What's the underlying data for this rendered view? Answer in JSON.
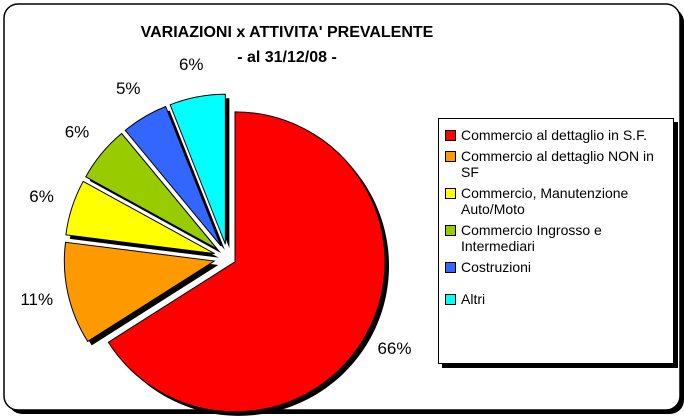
{
  "chart_data": {
    "type": "pie",
    "title": "VARIAZIONI x ATTIVITA' PREVALENTE",
    "subtitle": "- al 31/12/08 -",
    "categories": [
      "Commercio al dettaglio in S.F.",
      "Commercio al dettaglio NON in SF",
      "Commercio, Manutenzione Auto/Moto",
      "Commercio Ingrosso e Intermediari",
      "Costruzioni",
      "Altri"
    ],
    "values": [
      66,
      11,
      6,
      6,
      5,
      6
    ],
    "value_labels": [
      "66%",
      "11%",
      "6%",
      "6%",
      "5%",
      "6%"
    ],
    "colors": [
      "#ff0000",
      "#ff9900",
      "#ffff00",
      "#99cc00",
      "#3366ff",
      "#00ffff"
    ],
    "legend": "right"
  }
}
